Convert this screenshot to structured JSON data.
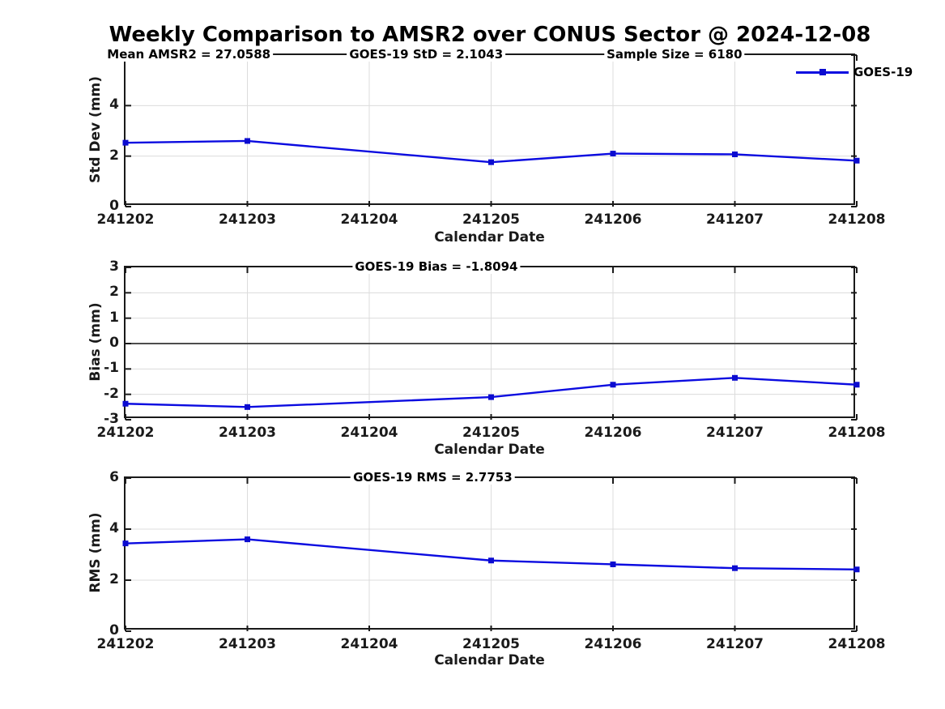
{
  "title": "Weekly Comparison to AMSR2 over CONUS Sector @ 2024-12-08",
  "legend": {
    "label": "GOES-19"
  },
  "colors": {
    "line": "#0B0BE0",
    "marker": "#0B0BD0",
    "grid": "#DCDCDC",
    "zero_line": "#4D4D4D",
    "axis": "#1A1A1A"
  },
  "chart_data": [
    {
      "type": "line",
      "panel": "std-dev",
      "series_name": "GOES-19",
      "annotations": [
        "Mean AMSR2 = 27.0588",
        "GOES-19 StD = 2.1043",
        "Sample Size = 6180"
      ],
      "ylabel": "Std Dev (mm)",
      "xlabel": "Calendar Date",
      "x": [
        241202,
        241203,
        241205,
        241206,
        241207,
        241208
      ],
      "y": [
        2.53,
        2.6,
        1.76,
        2.1,
        2.07,
        1.82
      ],
      "xlim": [
        241202,
        241208
      ],
      "ylim": [
        0,
        6
      ],
      "xticks": [
        241202,
        241203,
        241204,
        241205,
        241206,
        241207,
        241208
      ],
      "yticks": [
        0,
        2,
        4,
        6
      ],
      "grid": true,
      "zero_line": false,
      "legend_position": "top-right"
    },
    {
      "type": "line",
      "panel": "bias",
      "series_name": "GOES-19",
      "annotations": [
        "GOES-19 Bias  = -1.8094"
      ],
      "ylabel": "Bias (mm)",
      "xlabel": "Calendar Date",
      "x": [
        241202,
        241203,
        241205,
        241206,
        241207,
        241208
      ],
      "y": [
        -2.37,
        -2.5,
        -2.11,
        -1.62,
        -1.35,
        -1.62
      ],
      "xlim": [
        241202,
        241208
      ],
      "ylim": [
        -3,
        3
      ],
      "xticks": [
        241202,
        241203,
        241204,
        241205,
        241206,
        241207,
        241208
      ],
      "yticks": [
        -3,
        -2,
        -1,
        0,
        1,
        2,
        3
      ],
      "grid": true,
      "zero_line": true
    },
    {
      "type": "line",
      "panel": "rms",
      "series_name": "GOES-19",
      "annotations": [
        "GOES-19 RMS = 2.7753"
      ],
      "ylabel": "RMS (mm)",
      "xlabel": "Calendar Date",
      "x": [
        241202,
        241203,
        241205,
        241206,
        241207,
        241208
      ],
      "y": [
        3.44,
        3.6,
        2.77,
        2.62,
        2.47,
        2.42
      ],
      "xlim": [
        241202,
        241208
      ],
      "ylim": [
        0,
        6
      ],
      "xticks": [
        241202,
        241203,
        241204,
        241205,
        241206,
        241207,
        241208
      ],
      "yticks": [
        0,
        2,
        4,
        6
      ],
      "grid": true,
      "zero_line": false
    }
  ]
}
